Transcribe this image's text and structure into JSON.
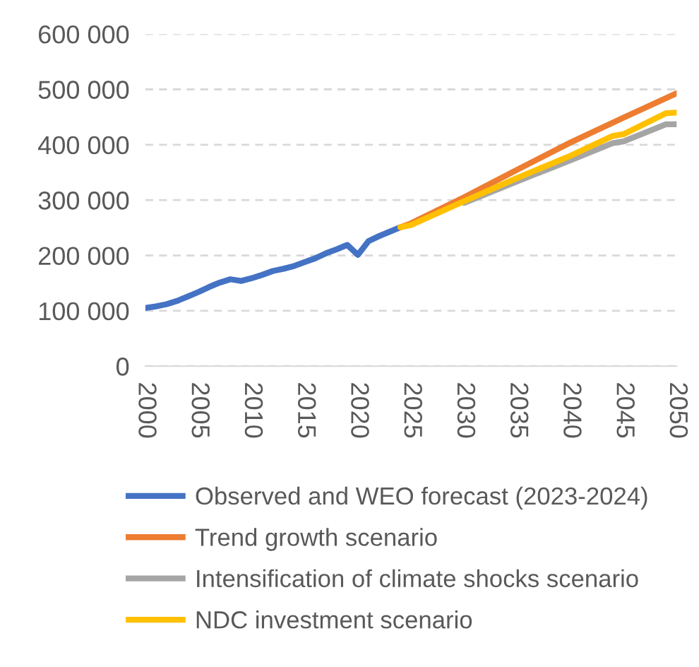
{
  "chart_data": {
    "type": "line",
    "xlim": [
      2000,
      2050
    ],
    "xticks": [
      2000,
      2005,
      2010,
      2015,
      2020,
      2025,
      2030,
      2035,
      2040,
      2045,
      2050
    ],
    "ylim": [
      0,
      600000
    ],
    "yticks": [
      {
        "value": 0,
        "label": "0"
      },
      {
        "value": 100000,
        "label": "100 000"
      },
      {
        "value": 200000,
        "label": "200 000"
      },
      {
        "value": 300000,
        "label": "300 000"
      },
      {
        "value": 400000,
        "label": "400 000"
      },
      {
        "value": 500000,
        "label": "500 000"
      },
      {
        "value": 600000,
        "label": "600 000"
      }
    ],
    "grid": "y",
    "legend": "bottom",
    "marker": "none",
    "line_style": "solid",
    "series": [
      {
        "name": "Observed and WEO forecast (2023-2024)",
        "color": "#4472c4",
        "x": [
          2000,
          2001,
          2002,
          2003,
          2004,
          2005,
          2006,
          2007,
          2008,
          2009,
          2010,
          2011,
          2012,
          2013,
          2014,
          2015,
          2016,
          2017,
          2018,
          2019,
          2020,
          2021,
          2022,
          2023,
          2024
        ],
        "values": [
          105000,
          108000,
          112000,
          118000,
          126000,
          134000,
          143000,
          151000,
          157000,
          154000,
          159000,
          165000,
          172000,
          176000,
          181000,
          188000,
          195000,
          204000,
          211000,
          219000,
          201000,
          226000,
          235000,
          243000,
          251000
        ]
      },
      {
        "name": "Trend growth scenario",
        "color": "#ed7d31",
        "x": [
          2024,
          2025,
          2030,
          2035,
          2040,
          2045,
          2050
        ],
        "values": [
          251000,
          258000,
          305000,
          355000,
          404000,
          449000,
          493000
        ]
      },
      {
        "name": "Intensification of climate shocks scenario",
        "color": "#a5a5a5",
        "x": [
          2030,
          2035,
          2040,
          2044,
          2045,
          2049,
          2050
        ],
        "values": [
          295000,
          334000,
          372000,
          403000,
          406000,
          437000,
          437000
        ]
      },
      {
        "name": "NDC investment scenario",
        "color": "#ffc000",
        "x": [
          2024,
          2025,
          2030,
          2035,
          2040,
          2044,
          2045,
          2049,
          2050
        ],
        "values": [
          251000,
          255000,
          298000,
          340000,
          380000,
          416000,
          419000,
          457000,
          458000
        ]
      }
    ]
  }
}
